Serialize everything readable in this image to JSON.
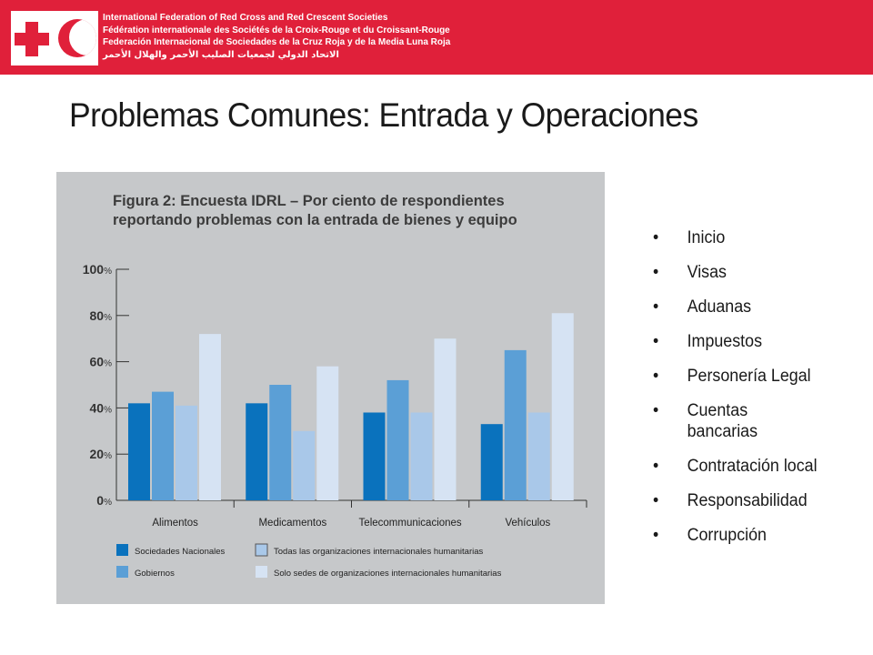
{
  "header": {
    "org_names": [
      "International Federation of Red Cross and Red Crescent Societies",
      "Fédération internationale des Sociétés de la Croix-Rouge et du Croissant-Rouge",
      "Federación Internacional de Sociedades de la Cruz Roja y de la Media Luna Roja",
      "الاتحاد الدولي لجمعيات الصليب الأحمر والهلال الأحمر"
    ]
  },
  "title": "Problemas Comunes:  Entrada y Operaciones",
  "bullets": [
    "Inicio",
    "Visas",
    "Aduanas",
    "Impuestos",
    "Personería Legal",
    "Cuentas bancarias",
    "Contratación local",
    "Responsabilidad",
    "Corrupción"
  ],
  "chart_data": {
    "type": "bar",
    "title": "Figura 2: Encuesta IDRL – Por ciento de respondientes reportando problemas con la entrada de bienes y equipo",
    "categories": [
      "Alimentos",
      "Medicamentos",
      "Telecommunicaciones",
      "Vehículos"
    ],
    "series": [
      {
        "name": "Sociedades Nacionales",
        "color": "#0a72bd",
        "values": [
          42,
          42,
          38,
          33
        ]
      },
      {
        "name": "Gobiernos",
        "color": "#5b9fd6",
        "values": [
          47,
          50,
          52,
          65
        ]
      },
      {
        "name": "Todas las organizaciones internacionales humanitarias",
        "color": "#a9c8e9",
        "values": [
          41,
          30,
          38,
          38
        ]
      },
      {
        "name": "Solo sedes de organizaciones internacionales humanitarias",
        "color": "#d6e3f3",
        "values": [
          72,
          58,
          70,
          81
        ]
      }
    ],
    "yticks": [
      {
        "value": 0,
        "label": "0%"
      },
      {
        "value": 20,
        "label": "20%"
      },
      {
        "value": 40,
        "label": "40%"
      },
      {
        "value": 60,
        "label": "60%"
      },
      {
        "value": 80,
        "label": "80%"
      },
      {
        "value": 100,
        "label": "100%"
      }
    ],
    "ylim": [
      0,
      100
    ],
    "grid": false,
    "legend_position": "bottom"
  }
}
